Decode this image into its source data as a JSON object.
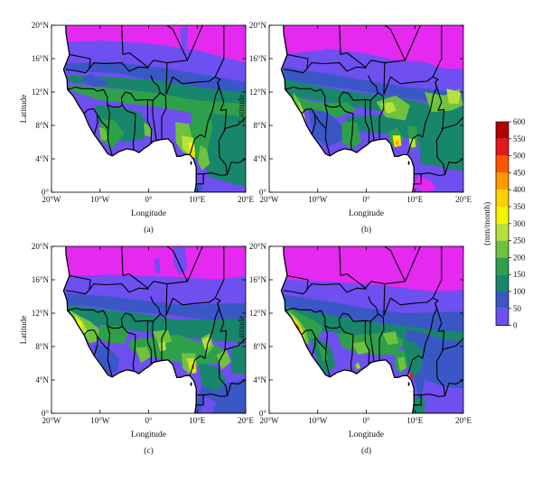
{
  "panels": [
    {
      "id": "a",
      "caption": "(a)"
    },
    {
      "id": "b",
      "caption": "(b)"
    },
    {
      "id": "c",
      "caption": "(c)"
    },
    {
      "id": "d",
      "caption": "(d)"
    }
  ],
  "axes": {
    "xlabel": "Longitude",
    "ylabel": "Latitude",
    "xticks": [
      "20°W",
      "10°W",
      "0°",
      "10°E",
      "20°E"
    ],
    "yticks": [
      "20°N",
      "16°N",
      "12°N",
      "8°N",
      "4°N",
      "0°"
    ],
    "lon_range": [
      -20,
      20
    ],
    "lat_range": [
      0,
      20
    ]
  },
  "colorbar": {
    "label": "(mm/month)",
    "ticks": [
      "600",
      "550",
      "500",
      "450",
      "400",
      "350",
      "300",
      "250",
      "200",
      "150",
      "100",
      "50",
      "0"
    ],
    "colors": [
      "#b30000",
      "#e31a1c",
      "#ff5500",
      "#ff9900",
      "#ffd200",
      "#f5f500",
      "#b8e03c",
      "#6ec23e",
      "#2fa04a",
      "#18866a",
      "#3a57c6",
      "#6e4ff0",
      "#e629f0"
    ]
  }
}
